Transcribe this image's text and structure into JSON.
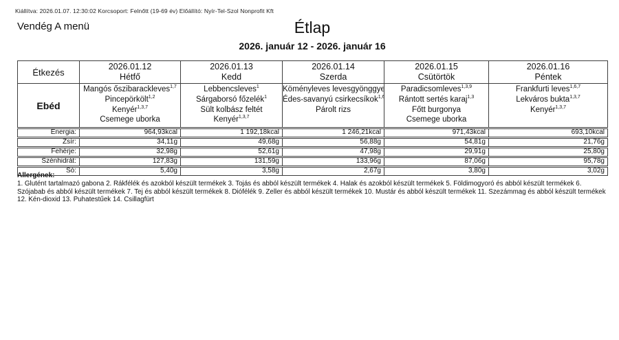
{
  "meta_line": "Kiállítva: 2026.01.07. 12:30:02 Korcsoport: Felnőtt (19-69 év) Előállító: Nyír-Tel-Szol Nonprofit Kft",
  "menu_name": "Vendég A menü",
  "title": "Étlap",
  "date_range": "2026. január 12 - 2026. január 16",
  "table": {
    "meal_col_header": "Étkezés",
    "meal_row_label": "Ebéd",
    "nutrient_labels": [
      "Energia:",
      "Zsír:",
      "Fehérje:",
      "Szénhidrát:",
      "Só:"
    ],
    "days": [
      {
        "date": "2026.01.12",
        "day": "Hétfő",
        "items": [
          {
            "name": "Mangós őszibarackleves",
            "sup": "1,7"
          },
          {
            "name": "Pincepörkölt",
            "sup": "1,2"
          },
          {
            "name": "Kenyér",
            "sup": "1,3,7"
          },
          {
            "name": "Csemege uborka",
            "sup": ""
          }
        ],
        "nutrients": [
          "964,93kcal",
          "34,11g",
          "32,98g",
          "127,83g",
          "5,40g"
        ]
      },
      {
        "date": "2026.01.13",
        "day": "Kedd",
        "items": [
          {
            "name": "Lebbencsleves",
            "sup": "1"
          },
          {
            "name": "Sárgaborsó főzelék",
            "sup": "1"
          },
          {
            "name": "Sült kolbász feltét",
            "sup": ""
          },
          {
            "name": "Kenyér",
            "sup": "1,3,7"
          }
        ],
        "nutrients": [
          "1 192,18kcal",
          "49,68g",
          "52,61g",
          "131,59g",
          "3,58g"
        ]
      },
      {
        "date": "2026.01.14",
        "day": "Szerda",
        "items": [
          {
            "name": "Köményleves levesgyönggyel",
            "sup": "1,3,7"
          },
          {
            "name": "Édes-savanyú csirkecsíkok",
            "sup": "1,6,12"
          },
          {
            "name": "Párolt rizs",
            "sup": ""
          }
        ],
        "nutrients": [
          "1 246,21kcal",
          "56,88g",
          "47,98g",
          "133,96g",
          "2,67g"
        ]
      },
      {
        "date": "2026.01.15",
        "day": "Csütörtök",
        "items": [
          {
            "name": "Paradicsomleves",
            "sup": "1,3,9"
          },
          {
            "name": "Rántott sertés karaj",
            "sup": "1,3"
          },
          {
            "name": "Főtt burgonya",
            "sup": ""
          },
          {
            "name": "Csemege uborka",
            "sup": ""
          }
        ],
        "nutrients": [
          "971,43kcal",
          "54,81g",
          "29,91g",
          "87,06g",
          "3,80g"
        ]
      },
      {
        "date": "2026.01.16",
        "day": "Péntek",
        "items": [
          {
            "name": "Frankfurti leves",
            "sup": "1,6,7"
          },
          {
            "name": "Lekváros bukta",
            "sup": "1,3,7"
          },
          {
            "name": "Kenyér",
            "sup": "1,3,7"
          }
        ],
        "nutrients": [
          "693,10kcal",
          "21,76g",
          "25,80g",
          "95,78g",
          "3,02g"
        ]
      }
    ]
  },
  "allergens": {
    "heading": "Allergének:",
    "text": "1. Glutént tartalmazó gabona 2. Rákfélék és azokból készült termékek 3. Tojás és abból készült termékek 4. Halak és azokból készült termékek 5. Földimogyoró és abból készült termékek 6. Szójabab és abból készült termékek 7. Tej és abból készült termékek 8. Diófélék 9. Zeller és abból készült termékek 10. Mustár és abból készült termékek 11. Szezámmag és abból készült termékek 12. Kén-dioxid 13. Puhatestűek 14. Csillagfürt"
  }
}
